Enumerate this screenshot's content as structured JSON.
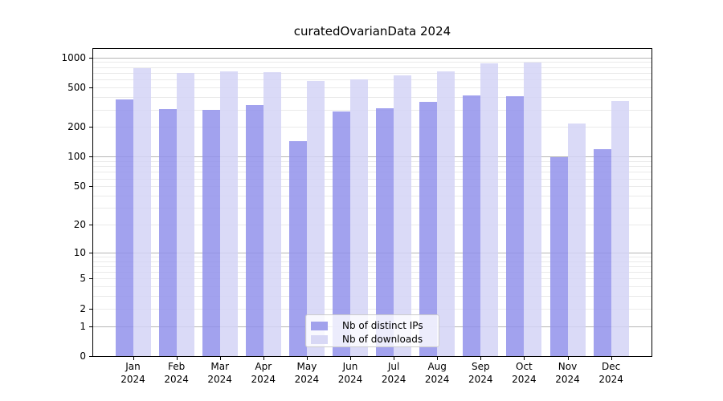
{
  "chart_data": {
    "type": "bar",
    "title": "curatedOvarianData 2024",
    "categories": [
      "Jan",
      "Feb",
      "Mar",
      "Apr",
      "May",
      "Jun",
      "Jul",
      "Aug",
      "Sep",
      "Oct",
      "Nov",
      "Dec"
    ],
    "x_year": "2024",
    "series": [
      {
        "name": "Nb of distinct IPs",
        "color": "rgba(146,146,235,0.85)",
        "legend_color": "#a2a2ec",
        "values": [
          377,
          305,
          297,
          331,
          143,
          286,
          309,
          361,
          419,
          411,
          98,
          120
        ]
      },
      {
        "name": "Nb of downloads",
        "color": "rgba(211,211,246,0.85)",
        "legend_color": "#d8d8f5",
        "values": [
          785,
          698,
          728,
          711,
          583,
          598,
          657,
          724,
          868,
          894,
          218,
          364
        ]
      }
    ],
    "yscale": "log1p",
    "ylim": [
      0,
      1250
    ],
    "yticks": [
      0,
      1,
      2,
      5,
      10,
      20,
      50,
      100,
      200,
      500,
      1000
    ],
    "major_grid_values": [
      1,
      10,
      100,
      1000
    ],
    "minor_grid_values": [
      2,
      3,
      4,
      5,
      6,
      7,
      8,
      9,
      20,
      30,
      40,
      50,
      60,
      70,
      80,
      90,
      200,
      300,
      400,
      500,
      600,
      700,
      800,
      900
    ],
    "grid": true,
    "legend_position": "bottom-center"
  }
}
